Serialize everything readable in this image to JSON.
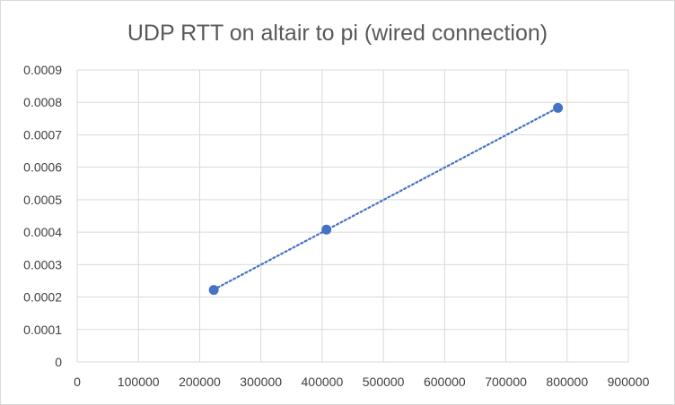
{
  "chart_data": {
    "type": "scatter",
    "title": "UDP RTT on altair to pi (wired connection)",
    "xlabel": "",
    "ylabel": "",
    "xlim": [
      0,
      900000
    ],
    "ylim": [
      0,
      0.0009
    ],
    "x_ticks": [
      "0",
      "100000",
      "200000",
      "300000",
      "400000",
      "500000",
      "600000",
      "700000",
      "800000",
      "900000"
    ],
    "y_ticks": [
      "0",
      "0.0001",
      "0.0002",
      "0.0003",
      "0.0004",
      "0.0005",
      "0.0006",
      "0.0007",
      "0.0008",
      "0.0009"
    ],
    "grid": true,
    "legend": "none",
    "trendline": "linear-dotted",
    "series": [
      {
        "color": "#4472c4",
        "points": [
          {
            "x": 223000,
            "y": 0.000222
          },
          {
            "x": 407000,
            "y": 0.000408
          },
          {
            "x": 785000,
            "y": 0.000783
          }
        ]
      }
    ]
  }
}
